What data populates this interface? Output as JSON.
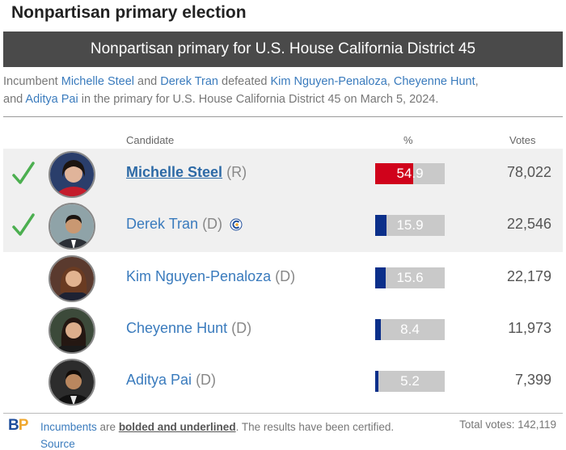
{
  "page_title": "Nonpartisan primary election",
  "banner_title": "Nonpartisan primary for U.S. House California District 45",
  "summary": {
    "prefix": "Incumbent ",
    "winner1": "Michelle Steel",
    "and1": " and ",
    "winner2": "Derek Tran",
    "defeated": " defeated ",
    "loser1": "Kim Nguyen-Penaloza",
    "comma1": ", ",
    "loser2": "Cheyenne Hunt",
    "comma2": ",",
    "and2": "and ",
    "loser3": "Aditya Pai",
    "suffix": " in the primary for U.S. House California District 45 on March 5, 2024."
  },
  "columns": {
    "candidate": "Candidate",
    "pct": "%",
    "votes": "Votes"
  },
  "candidates": [
    {
      "name": "Michelle Steel",
      "party": "(R)",
      "pct": "54.9",
      "pct_value": 54.9,
      "votes": "78,022",
      "winner": true,
      "incumbent": true,
      "bar_color": "#d0021b",
      "badge": false
    },
    {
      "name": "Derek Tran",
      "party": "(D)",
      "pct": "15.9",
      "pct_value": 15.9,
      "votes": "22,546",
      "winner": true,
      "incumbent": false,
      "bar_color": "#0b2f8a",
      "badge": true
    },
    {
      "name": "Kim Nguyen-Penaloza",
      "party": "(D)",
      "pct": "15.6",
      "pct_value": 15.6,
      "votes": "22,179",
      "winner": false,
      "incumbent": false,
      "bar_color": "#0b2f8a",
      "badge": false
    },
    {
      "name": "Cheyenne Hunt",
      "party": "(D)",
      "pct": "8.4",
      "pct_value": 8.4,
      "votes": "11,973",
      "winner": false,
      "incumbent": false,
      "bar_color": "#0b2f8a",
      "badge": false
    },
    {
      "name": "Aditya Pai",
      "party": "(D)",
      "pct": "5.2",
      "pct_value": 5.2,
      "votes": "7,399",
      "winner": false,
      "incumbent": false,
      "bar_color": "#0b2f8a",
      "badge": false
    }
  ],
  "footer": {
    "logo_b": "B",
    "logo_p": "P",
    "incumbents_link": "Incumbents",
    "are": " are ",
    "emph": "bolded and underlined",
    "rest": ". The results have been certified. ",
    "source_link": "Source",
    "total_votes": "Total votes: 142,119"
  },
  "colors": {
    "banner": "#4a4a4a",
    "link": "#3a7bbd",
    "check": "#4caf50",
    "republican": "#d0021b",
    "democrat": "#0b2f8a"
  }
}
